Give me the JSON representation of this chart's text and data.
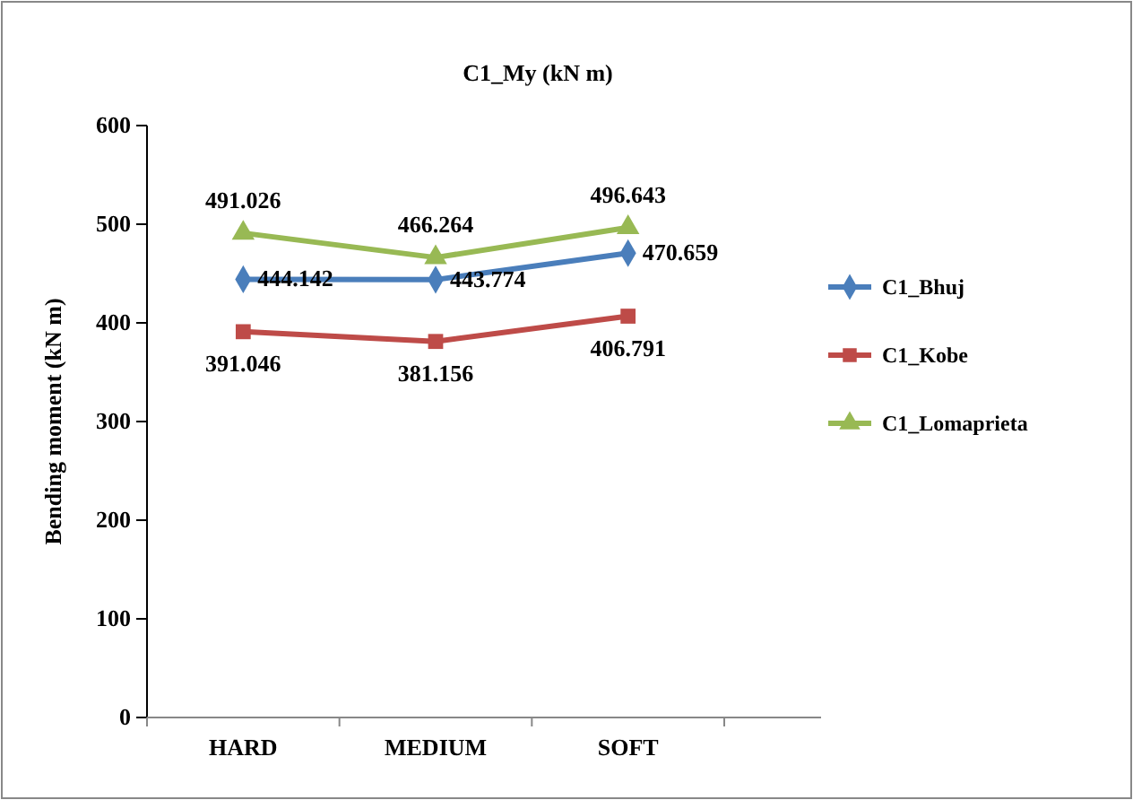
{
  "chart_data": {
    "type": "line",
    "title": "C1_My (kN m)",
    "ylabel": "Bending moment (kN m)",
    "categories": [
      "HARD",
      "MEDIUM",
      "SOFT"
    ],
    "ylim": [
      0,
      600
    ],
    "yticks": [
      0,
      100,
      200,
      300,
      400,
      500,
      600
    ],
    "grid": false,
    "legend": "right",
    "data_labels": true,
    "series": [
      {
        "name": "C1_Bhuj",
        "color": "#4a7ebb",
        "marker": "diamond",
        "values": [
          444.142,
          443.774,
          470.659
        ]
      },
      {
        "name": "C1_Kobe",
        "color": "#be4b48",
        "marker": "square",
        "values": [
          391.046,
          381.156,
          406.791
        ]
      },
      {
        "name": "C1_Lomaprieta",
        "color": "#98b954",
        "marker": "triangle",
        "values": [
          491.026,
          466.264,
          496.643
        ]
      }
    ]
  }
}
